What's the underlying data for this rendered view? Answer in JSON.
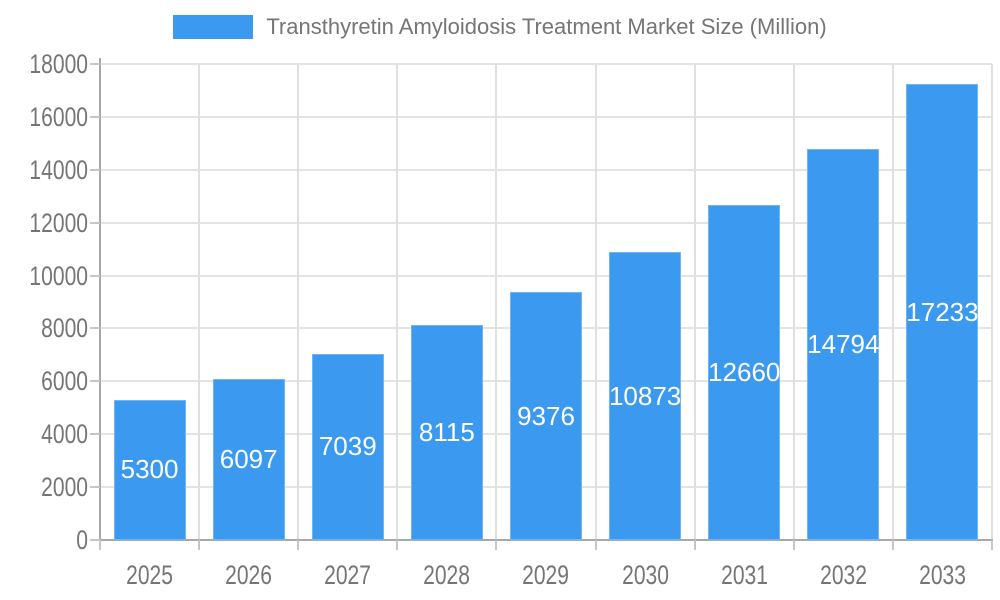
{
  "legend": {
    "label": "Transthyretin Amyloidosis Treatment Market Size (Million)",
    "swatch_color": "#3B99EF"
  },
  "chart_data": {
    "type": "bar",
    "title": "Transthyretin Amyloidosis Treatment Market Size (Million)",
    "series_name": "Transthyretin Amyloidosis Treatment Market Size (Million)",
    "categories": [
      "2025",
      "2026",
      "2027",
      "2028",
      "2029",
      "2030",
      "2031",
      "2032",
      "2033"
    ],
    "values": [
      5300,
      6097,
      7039,
      8115,
      9376,
      10873,
      12660,
      14794,
      17233
    ],
    "xlabel": "",
    "ylabel": "",
    "ylim": [
      0,
      18000
    ],
    "ytick_step": 2000,
    "ytick_labels": [
      "0",
      "2000",
      "4000",
      "6000",
      "8000",
      "10000",
      "12000",
      "14000",
      "16000",
      "18000"
    ],
    "legend_position": "top-center",
    "grid": "horizontal-and-vertical",
    "bar_color": "#3B99EF",
    "bar_label_color": "#FFFFFF",
    "axis_text_color": "#757575",
    "grid_color": "#e2e2e2",
    "axis_line_color": "#a8a8a8"
  }
}
